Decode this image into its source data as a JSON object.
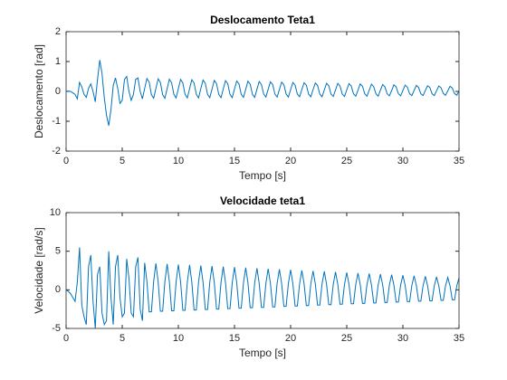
{
  "chart_data": [
    {
      "type": "line",
      "title": "Deslocamento Teta1",
      "x_label": "Tempo [s]",
      "y_label": "Deslocamento [rad]",
      "xlim": [
        0,
        35
      ],
      "xticks": [
        0,
        5,
        10,
        15,
        20,
        25,
        30,
        35
      ],
      "ylim": [
        -2,
        2
      ],
      "yticks": [
        -2,
        -1,
        0,
        1,
        2
      ],
      "x": [
        0,
        0.2,
        0.4,
        0.6,
        0.8,
        1,
        1.2,
        1.4,
        1.6,
        1.8,
        2,
        2.2,
        2.4,
        2.6,
        2.8,
        3,
        3.2,
        3.4,
        3.6,
        3.8,
        4,
        4.2,
        4.4,
        4.6,
        4.8,
        5,
        5.2,
        5.4,
        5.6,
        5.8,
        6,
        6.2,
        6.4,
        6.6,
        6.8,
        7,
        7.2,
        7.4,
        7.6,
        7.8,
        8,
        8.2,
        8.4,
        8.6,
        8.8,
        9,
        9.2,
        9.4,
        9.6,
        9.8,
        10,
        10.2,
        10.4,
        10.6,
        10.8,
        11,
        11.2,
        11.4,
        11.6,
        11.8,
        12,
        12.2,
        12.4,
        12.6,
        12.8,
        13,
        13.2,
        13.4,
        13.6,
        13.8,
        14,
        14.2,
        14.4,
        14.6,
        14.8,
        15,
        15.2,
        15.4,
        15.6,
        15.8,
        16,
        16.2,
        16.4,
        16.6,
        16.8,
        17,
        17.2,
        17.4,
        17.6,
        17.8,
        18,
        18.2,
        18.4,
        18.6,
        18.8,
        19,
        19.2,
        19.4,
        19.6,
        19.8,
        20,
        20.2,
        20.4,
        20.6,
        20.8,
        21,
        21.2,
        21.4,
        21.6,
        21.8,
        22,
        22.2,
        22.4,
        22.6,
        22.8,
        23,
        23.2,
        23.4,
        23.6,
        23.8,
        24,
        24.2,
        24.4,
        24.6,
        24.8,
        25,
        25.2,
        25.4,
        25.6,
        25.8,
        26,
        26.2,
        26.4,
        26.6,
        26.8,
        27,
        27.2,
        27.4,
        27.6,
        27.8,
        28,
        28.2,
        28.4,
        28.6,
        28.8,
        29,
        29.2,
        29.4,
        29.6,
        29.8,
        30,
        30.2,
        30.4,
        30.6,
        30.8,
        31,
        31.2,
        31.4,
        31.6,
        31.8,
        32,
        32.2,
        32.4,
        32.6,
        32.8,
        33,
        33.2,
        33.4,
        33.6,
        33.8,
        34,
        34.2,
        34.4,
        34.6,
        34.8,
        35
      ],
      "series": [
        {
          "name": "Teta1",
          "color": "#0072bd",
          "values": [
            0,
            0.01,
            0,
            -0.05,
            -0.1,
            -0.25,
            0.3,
            0.15,
            -0.1,
            -0.2,
            0.1,
            0.25,
            0,
            -0.35,
            0.4,
            1.05,
            0.6,
            -0.2,
            -0.8,
            -1.15,
            -0.6,
            0.2,
            0.45,
            0.1,
            -0.4,
            -0.3,
            0.4,
            0.5,
            0,
            -0.3,
            -0.1,
            0.4,
            0.45,
            0,
            -0.25,
            0.1,
            0.43,
            0.31,
            -0.11,
            -0.23,
            0.1,
            0.42,
            0.3,
            -0.11,
            -0.23,
            0.09,
            0.41,
            0.29,
            -0.1,
            -0.22,
            0.09,
            0.4,
            0.28,
            -0.1,
            -0.22,
            0.09,
            0.39,
            0.28,
            -0.1,
            -0.22,
            0.09,
            0.38,
            0.27,
            -0.1,
            -0.21,
            0.08,
            0.37,
            0.26,
            -0.1,
            -0.21,
            0.08,
            0.36,
            0.26,
            -0.1,
            -0.21,
            0.08,
            0.35,
            0.25,
            -0.1,
            -0.2,
            0.07,
            0.34,
            0.24,
            -0.1,
            -0.2,
            0.07,
            0.33,
            0.23,
            -0.09,
            -0.19,
            0.07,
            0.32,
            0.23,
            -0.09,
            -0.19,
            0.06,
            0.31,
            0.22,
            -0.09,
            -0.19,
            0.06,
            0.3,
            0.21,
            -0.09,
            -0.18,
            0.06,
            0.29,
            0.21,
            -0.09,
            -0.18,
            0.06,
            0.28,
            0.2,
            -0.09,
            -0.18,
            0.05,
            0.27,
            0.19,
            -0.09,
            -0.17,
            0.05,
            0.27,
            0.18,
            -0.09,
            -0.17,
            0.05,
            0.26,
            0.18,
            -0.08,
            -0.16,
            0.04,
            0.25,
            0.17,
            -0.08,
            -0.16,
            0.04,
            0.24,
            0.16,
            -0.08,
            -0.16,
            0.04,
            0.23,
            0.15,
            -0.08,
            -0.15,
            0.03,
            0.22,
            0.15,
            -0.08,
            -0.15,
            0.03,
            0.21,
            0.14,
            -0.08,
            -0.14,
            0.03,
            0.2,
            0.13,
            -0.08,
            -0.14,
            0.03,
            0.19,
            0.13,
            -0.08,
            -0.14,
            0.02,
            0.18,
            0.12,
            -0.07,
            -0.13,
            0.02,
            0.17,
            0.11,
            -0.07,
            -0.13,
            0.02
          ]
        }
      ]
    },
    {
      "type": "line",
      "title": "Velocidade teta1",
      "x_label": "Tempo [s]",
      "y_label": "Velocidade [rad/s]",
      "xlim": [
        0,
        35
      ],
      "xticks": [
        0,
        5,
        10,
        15,
        20,
        25,
        30,
        35
      ],
      "ylim": [
        -5,
        10
      ],
      "yticks": [
        -5,
        0,
        5,
        10
      ],
      "x": [
        0,
        0.2,
        0.4,
        0.6,
        0.8,
        1,
        1.2,
        1.4,
        1.6,
        1.8,
        2,
        2.2,
        2.4,
        2.6,
        2.8,
        3,
        3.2,
        3.4,
        3.6,
        3.8,
        4,
        4.2,
        4.4,
        4.6,
        4.8,
        5,
        5.2,
        5.4,
        5.6,
        5.8,
        6,
        6.2,
        6.4,
        6.6,
        6.8,
        7,
        7.2,
        7.4,
        7.6,
        7.8,
        8,
        8.2,
        8.4,
        8.6,
        8.8,
        9,
        9.2,
        9.4,
        9.6,
        9.8,
        10,
        10.2,
        10.4,
        10.6,
        10.8,
        11,
        11.2,
        11.4,
        11.6,
        11.8,
        12,
        12.2,
        12.4,
        12.6,
        12.8,
        13,
        13.2,
        13.4,
        13.6,
        13.8,
        14,
        14.2,
        14.4,
        14.6,
        14.8,
        15,
        15.2,
        15.4,
        15.6,
        15.8,
        16,
        16.2,
        16.4,
        16.6,
        16.8,
        17,
        17.2,
        17.4,
        17.6,
        17.8,
        18,
        18.2,
        18.4,
        18.6,
        18.8,
        19,
        19.2,
        19.4,
        19.6,
        19.8,
        20,
        20.2,
        20.4,
        20.6,
        20.8,
        21,
        21.2,
        21.4,
        21.6,
        21.8,
        22,
        22.2,
        22.4,
        22.6,
        22.8,
        23,
        23.2,
        23.4,
        23.6,
        23.8,
        24,
        24.2,
        24.4,
        24.6,
        24.8,
        25,
        25.2,
        25.4,
        25.6,
        25.8,
        26,
        26.2,
        26.4,
        26.6,
        26.8,
        27,
        27.2,
        27.4,
        27.6,
        27.8,
        28,
        28.2,
        28.4,
        28.6,
        28.8,
        29,
        29.2,
        29.4,
        29.6,
        29.8,
        30,
        30.2,
        30.4,
        30.6,
        30.8,
        31,
        31.2,
        31.4,
        31.6,
        31.8,
        32,
        32.2,
        32.4,
        32.6,
        32.8,
        33,
        33.2,
        33.4,
        33.6,
        33.8,
        34,
        34.2,
        34.4,
        34.6,
        34.8,
        35
      ],
      "series": [
        {
          "name": "teta1",
          "color": "#0072bd",
          "values": [
            0,
            -0.2,
            -0.5,
            -1,
            -1.5,
            1,
            5.5,
            -2,
            -3.5,
            -4.5,
            3,
            4.5,
            -1.5,
            -5,
            2,
            3,
            -3,
            -4.5,
            -4,
            5,
            -1,
            -4.5,
            3,
            4.5,
            -1,
            -3.5,
            -3,
            4,
            1.5,
            -3,
            -3.5,
            3,
            4.2,
            -2.5,
            -4,
            3.5,
            1.09,
            -2.84,
            -2.84,
            1.09,
            3.43,
            1.06,
            -2.78,
            -2.78,
            1.06,
            3.36,
            1.04,
            -2.72,
            -2.72,
            1.04,
            3.29,
            1.02,
            -2.66,
            -2.66,
            1.02,
            3.22,
            1,
            -2.61,
            -2.61,
            1,
            3.15,
            0.98,
            -2.55,
            -2.55,
            0.98,
            3.08,
            0.95,
            -2.49,
            -2.49,
            0.95,
            3.01,
            0.93,
            -2.44,
            -2.44,
            0.93,
            2.94,
            0.91,
            -2.38,
            -2.38,
            0.91,
            2.87,
            0.89,
            -2.32,
            -2.32,
            0.89,
            2.8,
            0.87,
            -2.27,
            -2.27,
            0.87,
            2.73,
            0.85,
            -2.21,
            -2.21,
            0.85,
            2.66,
            0.82,
            -2.15,
            -2.15,
            0.82,
            2.59,
            0.8,
            -2.1,
            -2.1,
            0.8,
            2.52,
            0.78,
            -2.04,
            -2.04,
            0.78,
            2.45,
            0.76,
            -1.98,
            -1.98,
            0.76,
            2.38,
            0.74,
            -1.93,
            -1.93,
            0.74,
            2.31,
            0.72,
            -1.87,
            -1.87,
            0.72,
            2.24,
            0.69,
            -1.81,
            -1.81,
            0.69,
            2.17,
            0.67,
            -1.76,
            -1.76,
            0.67,
            2.1,
            0.65,
            -1.7,
            -1.7,
            0.65,
            2.03,
            0.63,
            -1.64,
            -1.64,
            0.63,
            1.96,
            0.61,
            -1.59,
            -1.59,
            0.61,
            1.89,
            0.59,
            -1.53,
            -1.53,
            0.59,
            1.82,
            0.56,
            -1.47,
            -1.47,
            0.56,
            1.75,
            0.54,
            -1.42,
            -1.42,
            0.54,
            1.68,
            0.52,
            -1.36,
            -1.36,
            0.52,
            1.61,
            0.5,
            -1.3,
            -1.3,
            0.5,
            1.54
          ]
        }
      ]
    }
  ]
}
